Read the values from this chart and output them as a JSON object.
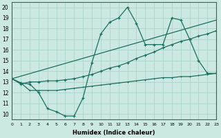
{
  "xlabel": "Humidex (Indice chaleur)",
  "bg_color": "#cce8e3",
  "grid_color": "#aad4cc",
  "line_color": "#1a6e60",
  "xlim": [
    0,
    23
  ],
  "ylim": [
    9.5,
    20.5
  ],
  "xticks": [
    0,
    1,
    2,
    3,
    4,
    5,
    6,
    7,
    8,
    9,
    10,
    11,
    12,
    13,
    14,
    15,
    16,
    17,
    18,
    19,
    20,
    21,
    22,
    23
  ],
  "yticks": [
    10,
    11,
    12,
    13,
    14,
    15,
    16,
    17,
    18,
    19,
    20
  ],
  "line1_x": [
    0,
    1,
    2,
    3,
    4,
    5,
    6,
    7,
    8,
    9,
    10,
    11,
    12,
    13,
    14,
    15,
    16,
    17,
    18,
    19,
    20,
    21,
    22,
    23
  ],
  "line1_y": [
    13.3,
    12.9,
    12.8,
    12.0,
    10.5,
    10.2,
    9.8,
    9.8,
    11.5,
    14.8,
    17.5,
    18.6,
    19.0,
    20.0,
    18.5,
    16.5,
    16.5,
    16.5,
    19.0,
    18.8,
    17.0,
    15.0,
    13.8,
    13.8
  ],
  "line2_x": [
    0,
    1,
    2,
    3,
    4,
    5,
    6,
    7,
    8,
    9,
    10,
    11,
    12,
    13,
    14,
    15,
    16,
    17,
    18,
    19,
    20,
    21,
    22,
    23
  ],
  "line2_y": [
    13.3,
    12.8,
    13.0,
    13.0,
    13.1,
    13.1,
    13.2,
    13.3,
    13.5,
    13.7,
    14.0,
    14.3,
    14.5,
    14.8,
    15.2,
    15.5,
    15.8,
    16.2,
    16.5,
    16.8,
    17.0,
    17.3,
    17.5,
    17.8
  ],
  "line3_x": [
    0,
    23
  ],
  "line3_y": [
    13.3,
    18.8
  ],
  "line4_x": [
    0,
    1,
    2,
    3,
    4,
    5,
    6,
    7,
    8,
    9,
    10,
    11,
    12,
    13,
    14,
    15,
    16,
    17,
    18,
    19,
    20,
    21,
    22,
    23
  ],
  "line4_y": [
    13.3,
    12.9,
    12.2,
    12.2,
    12.2,
    12.2,
    12.3,
    12.4,
    12.5,
    12.6,
    12.7,
    12.8,
    12.9,
    13.0,
    13.1,
    13.2,
    13.3,
    13.4,
    13.4,
    13.5,
    13.5,
    13.6,
    13.7,
    13.8
  ]
}
